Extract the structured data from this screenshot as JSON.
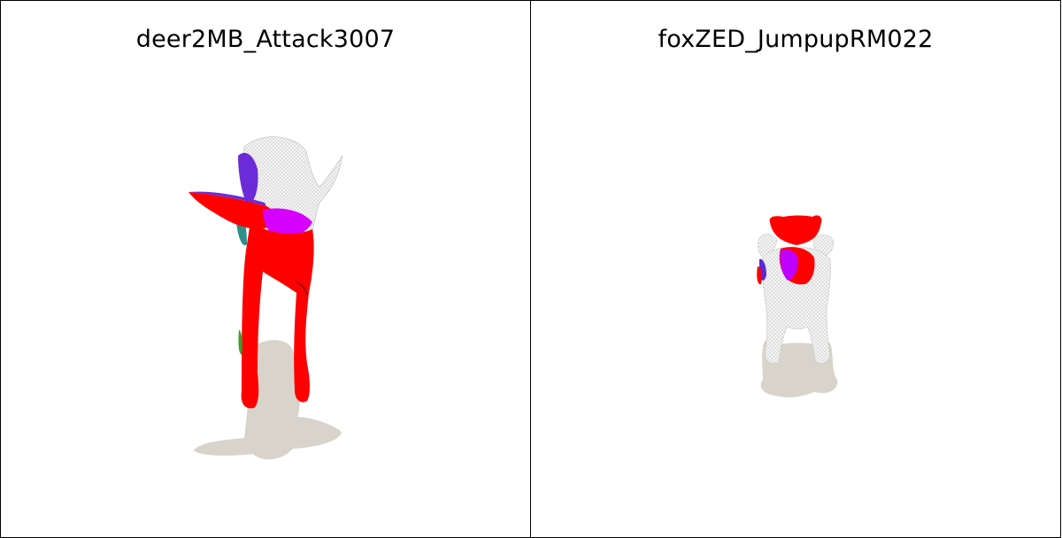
{
  "panels": [
    {
      "title": "deer2MB_Attack3007",
      "subject": "deer",
      "colors": {
        "primary": "#ff0000",
        "highlight": "#d600ff",
        "secondary": "#6b2bd9",
        "accent": "#3a9e2a",
        "teal": "#2f8f88",
        "mesh": "#e8e8e8",
        "shadow": "#d8d4cc"
      }
    },
    {
      "title": "foxZED_JumpupRM022",
      "subject": "fox",
      "colors": {
        "primary": "#ff0000",
        "highlight": "#c000ff",
        "secondary": "#5b2bd0",
        "mesh": "#e8e8e8",
        "shadow": "#d8d4cc"
      }
    }
  ]
}
